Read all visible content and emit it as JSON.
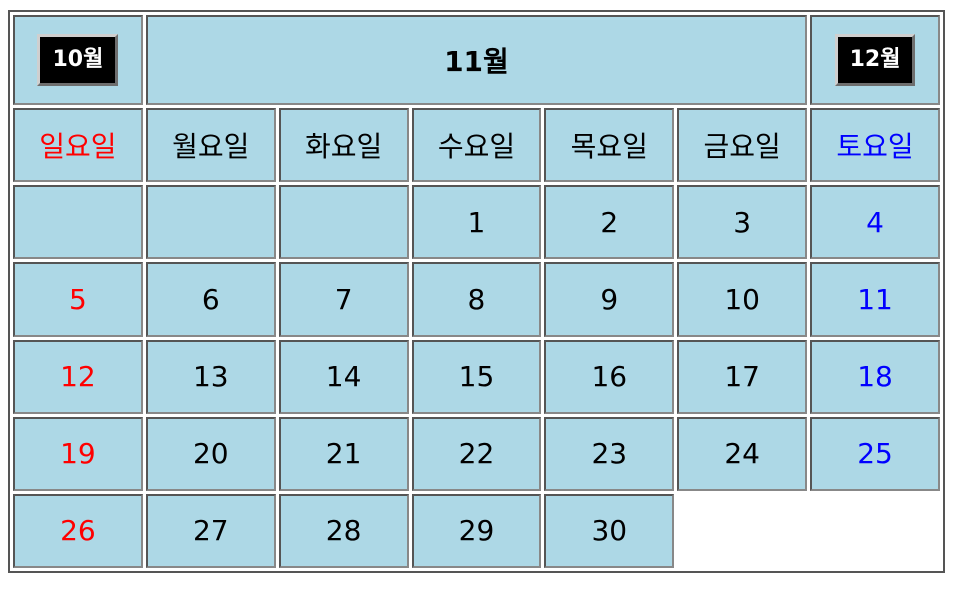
{
  "calendar": {
    "prev_month": "10월",
    "current_month": "11월",
    "next_month": "12월",
    "weekdays": [
      "일요일",
      "월요일",
      "화요일",
      "수요일",
      "목요일",
      "금요일",
      "토요일"
    ],
    "weeks": [
      [
        "",
        "",
        "",
        "1",
        "2",
        "3",
        "4"
      ],
      [
        "5",
        "6",
        "7",
        "8",
        "9",
        "10",
        "11"
      ],
      [
        "12",
        "13",
        "14",
        "15",
        "16",
        "17",
        "18"
      ],
      [
        "19",
        "20",
        "21",
        "22",
        "23",
        "24",
        "25"
      ],
      [
        "26",
        "27",
        "28",
        "29",
        "30",
        null,
        null
      ]
    ],
    "colors": {
      "cell_background": "#add8e6",
      "sunday": "#ff0000",
      "saturday": "#0000ff",
      "weekday": "#000000",
      "nav_button": "#000000"
    }
  }
}
